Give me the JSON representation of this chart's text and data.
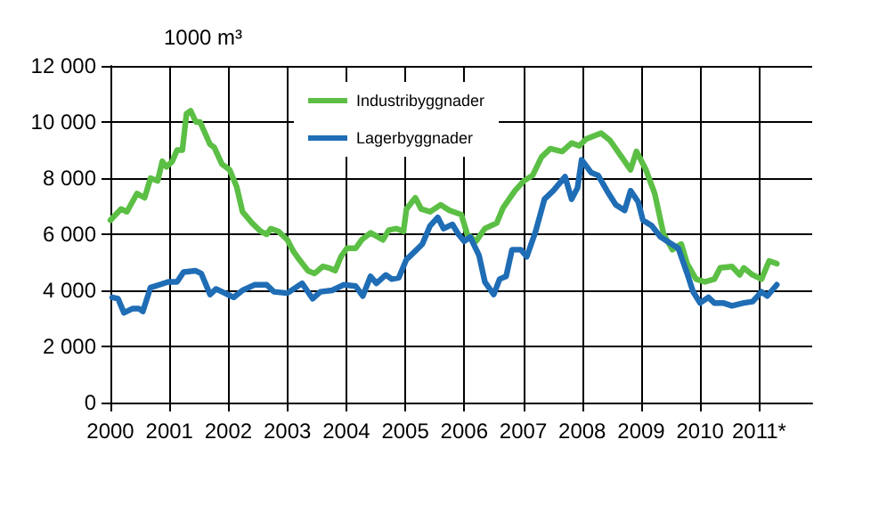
{
  "chart_data": {
    "type": "line",
    "ylabel": "1000 m³",
    "xlim": [
      2000,
      2011.9
    ],
    "xticks": [
      2000,
      2001,
      2002,
      2003,
      2004,
      2005,
      2006,
      2007,
      2008,
      2009,
      2010,
      {
        "value": 2011,
        "label": "2011*"
      }
    ],
    "ylim": [
      0,
      12000
    ],
    "yticks": [
      {
        "value": 0,
        "label": "0"
      },
      {
        "value": 2000,
        "label": "2 000"
      },
      {
        "value": 4000,
        "label": "4 000"
      },
      {
        "value": 6000,
        "label": "6 000"
      },
      {
        "value": 8000,
        "label": "8 000"
      },
      {
        "value": 10000,
        "label": "10 000"
      },
      {
        "value": 12000,
        "label": "12 000"
      }
    ],
    "grid": true,
    "legend": "top",
    "marker": "none",
    "line_style": "solid",
    "series": [
      {
        "name": "Industribyggnader",
        "color": "#5cbf45",
        "x": [
          2000.0,
          2000.18,
          2000.28,
          2000.45,
          2000.58,
          2000.68,
          2000.8,
          2000.88,
          2000.95,
          2001.05,
          2001.13,
          2001.22,
          2001.29,
          2001.36,
          2001.45,
          2001.52,
          2001.69,
          2001.76,
          2001.89,
          2002.02,
          2002.14,
          2002.24,
          2002.4,
          2002.55,
          2002.65,
          2002.72,
          2002.85,
          2003.0,
          2003.1,
          2003.2,
          2003.35,
          2003.46,
          2003.6,
          2003.71,
          2003.81,
          2003.91,
          2004.01,
          2004.16,
          2004.26,
          2004.41,
          2004.54,
          2004.62,
          2004.72,
          2004.85,
          2004.97,
          2005.02,
          2005.17,
          2005.27,
          2005.42,
          2005.6,
          2005.75,
          2005.95,
          2006.05,
          2006.2,
          2006.35,
          2006.55,
          2006.66,
          2006.86,
          2007.01,
          2007.16,
          2007.31,
          2007.46,
          2007.66,
          2007.82,
          2007.95,
          2008.07,
          2008.32,
          2008.47,
          2008.67,
          2008.82,
          2008.92,
          2009.08,
          2009.23,
          2009.38,
          2009.53,
          2009.68,
          2009.78,
          2009.93,
          2010.08,
          2010.24,
          2010.34,
          2010.54,
          2010.67,
          2010.74,
          2010.89,
          2011.04,
          2011.17,
          2011.3
        ],
        "values": [
          6500,
          6900,
          6800,
          7450,
          7300,
          8000,
          7900,
          8600,
          8400,
          8600,
          9000,
          9000,
          10300,
          10400,
          10000,
          10000,
          9200,
          9100,
          8500,
          8300,
          7700,
          6800,
          6400,
          6100,
          6000,
          6200,
          6100,
          5800,
          5400,
          5100,
          4700,
          4600,
          4850,
          4800,
          4700,
          5200,
          5500,
          5500,
          5800,
          6050,
          5900,
          5800,
          6150,
          6200,
          6100,
          6900,
          7300,
          6900,
          6800,
          7050,
          6850,
          6700,
          6000,
          5750,
          6200,
          6400,
          6950,
          7550,
          7900,
          8100,
          8750,
          9050,
          8950,
          9250,
          9150,
          9400,
          9600,
          9350,
          8750,
          8300,
          8950,
          8300,
          7450,
          6000,
          5450,
          5650,
          4950,
          4400,
          4300,
          4400,
          4800,
          4850,
          4550,
          4800,
          4550,
          4400,
          5050,
          4950
        ]
      },
      {
        "name": "Lagerbyggnader",
        "color": "#1f6db5",
        "x": [
          2000.03,
          2000.13,
          2000.23,
          2000.38,
          2000.48,
          2000.55,
          2000.68,
          2000.83,
          2000.98,
          2001.13,
          2001.24,
          2001.44,
          2001.54,
          2001.69,
          2001.79,
          2001.94,
          2002.09,
          2002.24,
          2002.45,
          2002.65,
          2002.77,
          2003.0,
          2003.25,
          2003.43,
          2003.56,
          2003.76,
          2003.96,
          2004.16,
          2004.28,
          2004.41,
          2004.51,
          2004.67,
          2004.77,
          2004.89,
          2005.02,
          2005.17,
          2005.29,
          2005.42,
          2005.55,
          2005.65,
          2005.8,
          2005.9,
          2006.0,
          2006.1,
          2006.25,
          2006.35,
          2006.5,
          2006.6,
          2006.71,
          2006.81,
          2006.96,
          2007.06,
          2007.21,
          2007.36,
          2007.51,
          2007.71,
          2007.82,
          2007.92,
          2007.99,
          2008.15,
          2008.27,
          2008.42,
          2008.57,
          2008.72,
          2008.82,
          2008.95,
          2009.03,
          2009.18,
          2009.33,
          2009.48,
          2009.63,
          2009.78,
          2009.88,
          2010.0,
          2010.14,
          2010.24,
          2010.39,
          2010.54,
          2010.74,
          2010.89,
          2011.04,
          2011.14,
          2011.3
        ],
        "values": [
          3750,
          3700,
          3200,
          3350,
          3350,
          3250,
          4100,
          4200,
          4300,
          4300,
          4650,
          4700,
          4600,
          3850,
          4050,
          3900,
          3750,
          4000,
          4200,
          4200,
          3950,
          3900,
          4250,
          3700,
          3950,
          4000,
          4200,
          4150,
          3800,
          4500,
          4250,
          4550,
          4400,
          4450,
          5100,
          5400,
          5650,
          6300,
          6600,
          6200,
          6350,
          6000,
          5750,
          5900,
          5250,
          4300,
          3850,
          4400,
          4500,
          5450,
          5450,
          5200,
          6100,
          7250,
          7550,
          8050,
          7250,
          7650,
          8650,
          8200,
          8100,
          7550,
          7050,
          6850,
          7550,
          7150,
          6500,
          6300,
          5900,
          5700,
          5500,
          4600,
          3950,
          3550,
          3750,
          3550,
          3550,
          3450,
          3550,
          3600,
          3950,
          3800,
          4200
        ]
      }
    ]
  }
}
